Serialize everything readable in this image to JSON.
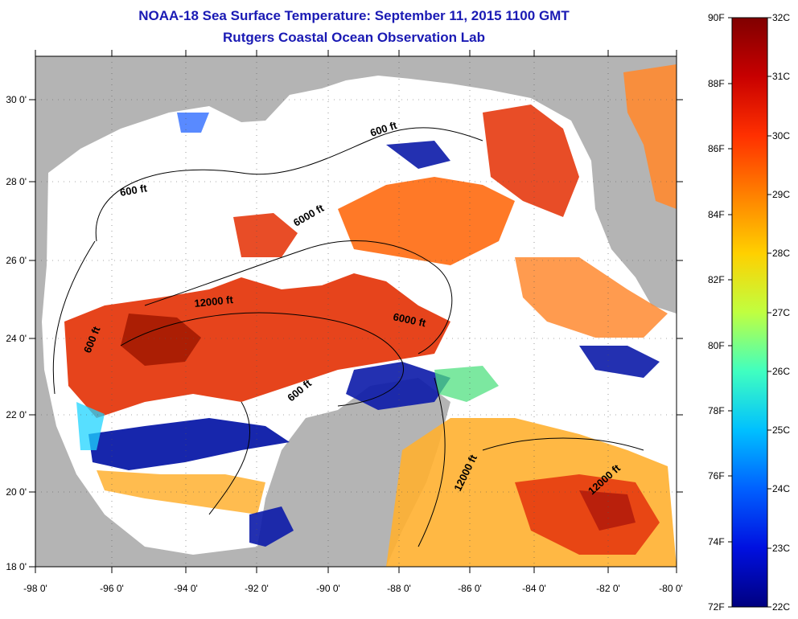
{
  "title": {
    "line1": "NOAA-18 Sea Surface Temperature:  September 11, 2015 1100 GMT",
    "line2": "Rutgers Coastal Ocean Observation Lab"
  },
  "axes": {
    "lon_ticks": [
      "-98 0'",
      "-96 0'",
      "-94 0'",
      "-92 0'",
      "-90 0'",
      "-88 0'",
      "-86 0'",
      "-84 0'",
      "-82 0'",
      "-80 0'"
    ],
    "lat_ticks": [
      "30 0'",
      "28 0'",
      "26 0'",
      "24 0'",
      "22 0'",
      "20 0'",
      "18 0'"
    ]
  },
  "contours": {
    "c600_north": "600 ft",
    "c600_nw": "600 ft",
    "c6000_north": "6000 ft",
    "c12000_central": "12000 ft",
    "c6000_east": "6000 ft",
    "c600_west": "600 ft",
    "c600_south": "600 ft",
    "c12000_se1": "12000 ft",
    "c12000_se2": "12000 ft"
  },
  "colorbar": {
    "fahrenheit": [
      "90F",
      "88F",
      "86F",
      "84F",
      "82F",
      "80F",
      "78F",
      "76F",
      "74F",
      "72F"
    ],
    "celsius": [
      "32C",
      "31C",
      "30C",
      "29C",
      "28C",
      "27C",
      "26C",
      "25C",
      "24C",
      "23C",
      "22C"
    ]
  },
  "colors": {
    "land": "#b4b4b4",
    "no_data": "#ffffff",
    "title": "#1a1ab4",
    "warm": "#e53a10",
    "cold": "#0b1aa8"
  }
}
